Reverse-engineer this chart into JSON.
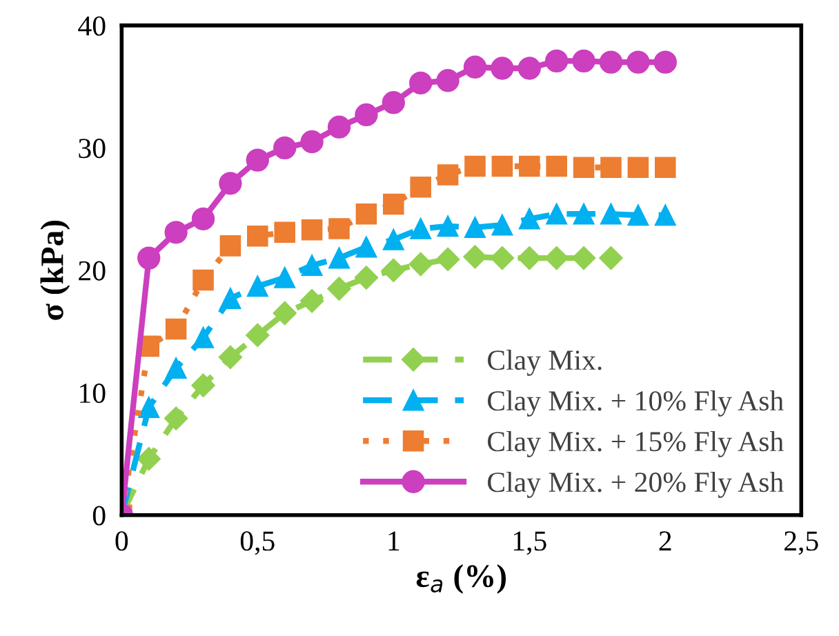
{
  "chart_data": {
    "type": "line",
    "xlabel": "ε$_{a}$ (%)",
    "ylabel": "σ (kPa)",
    "xlim": [
      0,
      2.5
    ],
    "ylim": [
      0,
      40
    ],
    "xticks": [
      0,
      {
        "value": 0.5,
        "label": "0,5"
      },
      1,
      {
        "value": 1.5,
        "label": "1,5"
      },
      2,
      {
        "value": 2.5,
        "label": "2,5"
      }
    ],
    "yticks": [
      0,
      10,
      20,
      30,
      40
    ],
    "grid": false,
    "legend": "bottom right",
    "series": [
      {
        "name": "Clay Mix.",
        "color": "#92d050",
        "marker": "diamond",
        "line_style": "dashed",
        "x": [
          0,
          0.1,
          0.2,
          0.3,
          0.4,
          0.5,
          0.6,
          0.7,
          0.8,
          0.9,
          1.0,
          1.1,
          1.2,
          1.3,
          1.4,
          1.5,
          1.6,
          1.7,
          1.8
        ],
        "values": [
          0,
          4.6,
          7.9,
          10.6,
          12.9,
          14.7,
          16.5,
          17.5,
          18.5,
          19.4,
          20,
          20.5,
          20.9,
          21.1,
          21,
          21,
          21,
          21,
          21
        ]
      },
      {
        "name": "Clay Mix. + 10% Fly Ash",
        "color": "#00b0f0",
        "marker": "triangle",
        "line_style": "dashed",
        "x": [
          0,
          0.1,
          0.2,
          0.3,
          0.4,
          0.5,
          0.6,
          0.7,
          0.8,
          0.9,
          1.0,
          1.1,
          1.2,
          1.3,
          1.4,
          1.5,
          1.6,
          1.7,
          1.8,
          1.9,
          2.0
        ],
        "values": [
          0,
          8.8,
          12,
          14.5,
          17.7,
          18.7,
          19.4,
          20.4,
          21,
          21.9,
          22.5,
          23.4,
          23.6,
          23.5,
          23.7,
          24.2,
          24.6,
          24.6,
          24.6,
          24.5,
          24.5
        ]
      },
      {
        "name": "Clay Mix. + 15% Fly Ash",
        "color": "#ed7d31",
        "marker": "square",
        "line_style": "dotted",
        "x": [
          0,
          0.1,
          0.2,
          0.3,
          0.4,
          0.5,
          0.6,
          0.7,
          0.8,
          0.9,
          1.0,
          1.1,
          1.2,
          1.3,
          1.4,
          1.5,
          1.6,
          1.7,
          1.8,
          1.9,
          2.0
        ],
        "values": [
          0,
          13.8,
          15.2,
          19.2,
          22,
          22.8,
          23.1,
          23.3,
          23.4,
          24.6,
          25.4,
          26.8,
          27.8,
          28.5,
          28.5,
          28.5,
          28.5,
          28.4,
          28.4,
          28.4,
          28.4
        ]
      },
      {
        "name": "Clay Mix. + 20% Fly Ash",
        "color": "#cc3fbf",
        "marker": "circle",
        "line_style": "solid",
        "x": [
          0,
          0.1,
          0.2,
          0.3,
          0.4,
          0.5,
          0.6,
          0.7,
          0.8,
          0.9,
          1.0,
          1.1,
          1.2,
          1.3,
          1.4,
          1.5,
          1.6,
          1.7,
          1.8,
          1.9,
          2.0
        ],
        "values": [
          0,
          21,
          23.1,
          24.2,
          27.1,
          29,
          30,
          30.5,
          31.7,
          32.7,
          33.7,
          35.3,
          35.5,
          36.6,
          36.5,
          36.5,
          37.1,
          37.1,
          37,
          37,
          37
        ]
      }
    ]
  }
}
